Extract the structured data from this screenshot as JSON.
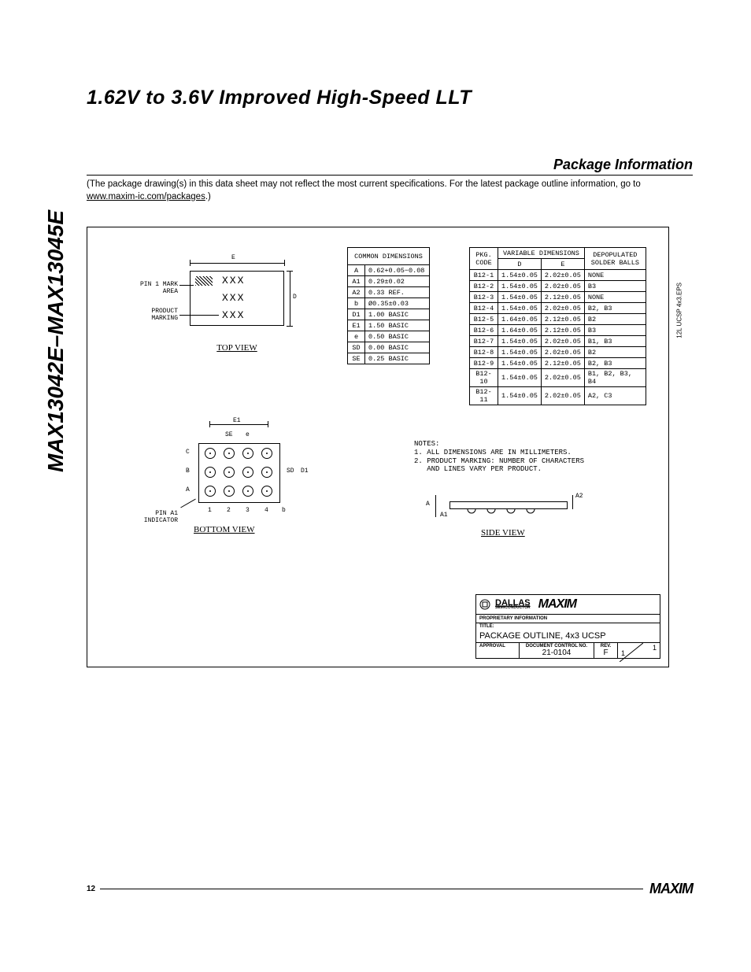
{
  "doc": {
    "title": "1.62V to 3.6V Improved High-Speed LLT",
    "part_range": "MAX13042E–MAX13045E",
    "section": "Package Information",
    "disclaimer_pre": "(The package drawing(s) in this data sheet may not reflect the most current specifications. For the latest package outline information, go to ",
    "disclaimer_link": "www.maxim-ic.com/packages",
    "disclaimer_post": ".)",
    "eps_label": "12L UCSP 4x3.EPS",
    "page_number": "12",
    "footer_logo": "MAXIM"
  },
  "common_dims": {
    "header": "COMMON DIMENSIONS",
    "rows": [
      {
        "sym": "A",
        "val": "0.62+0.05−0.08"
      },
      {
        "sym": "A1",
        "val": "0.29±0.02"
      },
      {
        "sym": "A2",
        "val": "0.33 REF."
      },
      {
        "sym": "b",
        "val": "Ø0.35±0.03"
      },
      {
        "sym": "D1",
        "val": "1.00 BASIC"
      },
      {
        "sym": "E1",
        "val": "1.50 BASIC"
      },
      {
        "sym": "e",
        "val": "0.50 BASIC"
      },
      {
        "sym": "SD",
        "val": "0.00 BASIC"
      },
      {
        "sym": "SE",
        "val": "0.25 BASIC"
      }
    ]
  },
  "var_dims": {
    "h1": "PKG. CODE",
    "h2": "VARIABLE DIMENSIONS",
    "h2a": "D",
    "h2b": "E",
    "h3": "DEPOPULATED SOLDER BALLS",
    "rows": [
      {
        "code": "B12-1",
        "d": "1.54±0.05",
        "e": "2.02±0.05",
        "balls": "NONE"
      },
      {
        "code": "B12-2",
        "d": "1.54±0.05",
        "e": "2.02±0.05",
        "balls": "B3"
      },
      {
        "code": "B12-3",
        "d": "1.54±0.05",
        "e": "2.12±0.05",
        "balls": "NONE"
      },
      {
        "code": "B12-4",
        "d": "1.54±0.05",
        "e": "2.02±0.05",
        "balls": "B2, B3"
      },
      {
        "code": "B12-5",
        "d": "1.64±0.05",
        "e": "2.12±0.05",
        "balls": "B2"
      },
      {
        "code": "B12-6",
        "d": "1.64±0.05",
        "e": "2.12±0.05",
        "balls": "B3"
      },
      {
        "code": "B12-7",
        "d": "1.54±0.05",
        "e": "2.02±0.05",
        "balls": "B1, B3"
      },
      {
        "code": "B12-8",
        "d": "1.54±0.05",
        "e": "2.02±0.05",
        "balls": "B2"
      },
      {
        "code": "B12-9",
        "d": "1.54±0.05",
        "e": "2.12±0.05",
        "balls": "B2, B3"
      },
      {
        "code": "B12-10",
        "d": "1.54±0.05",
        "e": "2.02±0.05",
        "balls": "B1, B2, B3, B4"
      },
      {
        "code": "B12-11",
        "d": "1.54±0.05",
        "e": "2.02±0.05",
        "balls": "A2, C3"
      }
    ]
  },
  "views": {
    "top": "TOP VIEW",
    "bottom": "BOTTOM VIEW",
    "side": "SIDE VIEW",
    "pin1": "PIN 1 MARK AREA",
    "product_marking": "PRODUCT MARKING",
    "pin_a1": "PIN A1 INDICATOR",
    "xxx": "XXX",
    "E": "E",
    "D": "D",
    "E1": "E1",
    "D1": "D1",
    "SE": "SE",
    "SD": "SD",
    "e": "e",
    "b": "b",
    "A": "A",
    "A1": "A1",
    "A2": "A2",
    "rowA": "A",
    "rowB": "B",
    "rowC": "C",
    "col1": "1",
    "col2": "2",
    "col3": "3",
    "col4": "4"
  },
  "notes": {
    "header": "NOTES:",
    "n1": "1. ALL DIMENSIONS ARE IN MILLIMETERS.",
    "n2a": "2. PRODUCT MARKING: NUMBER OF CHARACTERS",
    "n2b": "   AND LINES VARY PER PRODUCT."
  },
  "titleblock": {
    "dallas": "DALLAS",
    "semi": "SEMICONDUCTOR",
    "maxim": "MAXIM",
    "prop": "PROPRIETARY INFORMATION",
    "title_lbl": "TITLE:",
    "title": "PACKAGE OUTLINE, 4x3 UCSP",
    "approval": "APPROVAL",
    "docctrl_lbl": "DOCUMENT CONTROL NO.",
    "docctrl": "21-0104",
    "rev_lbl": "REV.",
    "rev": "F",
    "sheet": "1/1"
  }
}
